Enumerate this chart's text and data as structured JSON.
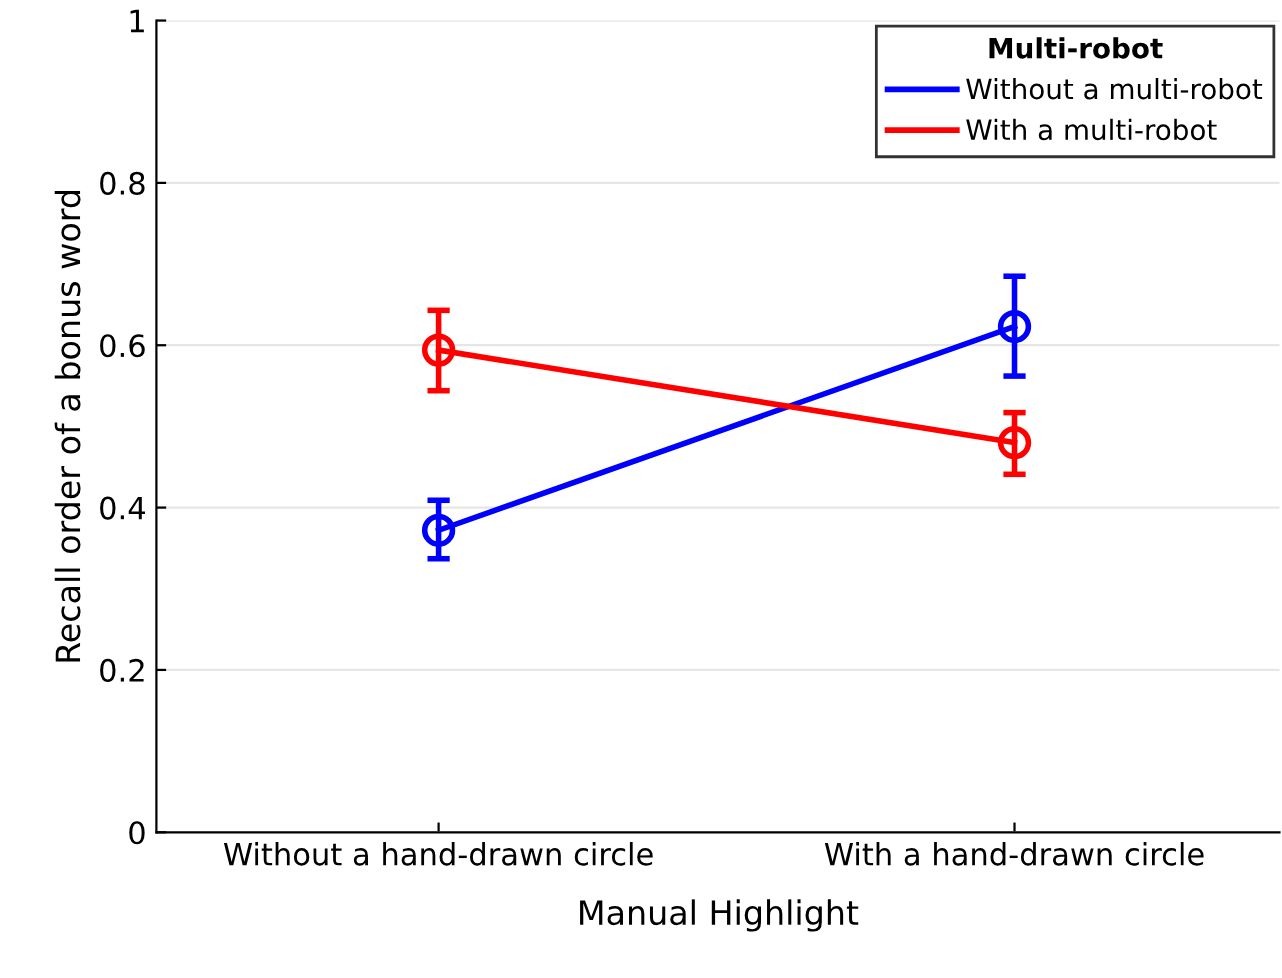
{
  "chart_data": {
    "type": "line",
    "xlabel": "Manual Highlight",
    "ylabel": "Recall order of a bonus word",
    "legend_title": "Multi-robot",
    "categories": [
      "Without a hand-drawn circle",
      "With a hand-drawn circle"
    ],
    "series": [
      {
        "name": "Without a multi-robot",
        "color": "#0000ff",
        "values": [
          0.372,
          0.623
        ],
        "errors": [
          [
            0.337,
            0.409
          ],
          [
            0.562,
            0.685
          ]
        ]
      },
      {
        "name": "With a multi-robot",
        "color": "#ff0000",
        "values": [
          0.594,
          0.48
        ],
        "errors": [
          [
            0.544,
            0.643
          ],
          [
            0.441,
            0.517
          ]
        ]
      }
    ],
    "ylim": [
      0,
      1
    ],
    "yticks": [
      0,
      0.2,
      0.4,
      0.6,
      0.8,
      1
    ],
    "grid": "y",
    "legend": "top right",
    "marker": "circle",
    "line_style": "solid"
  }
}
